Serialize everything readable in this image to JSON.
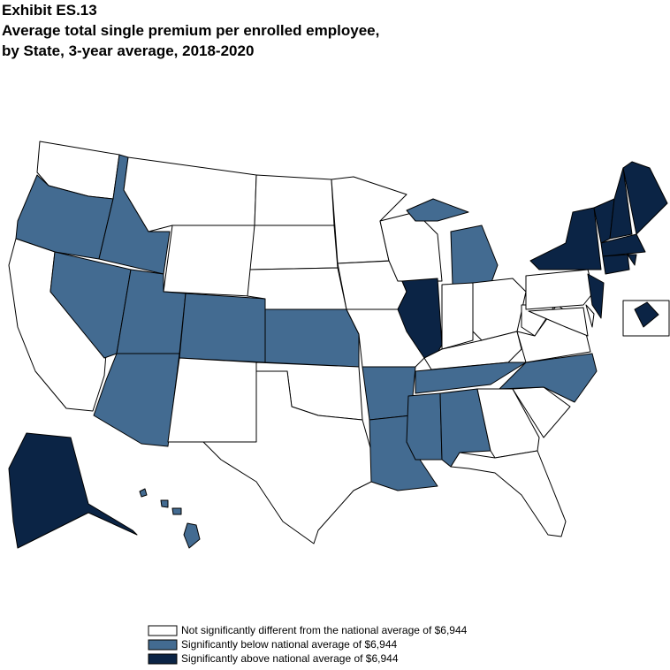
{
  "header": {
    "exhibit": "Exhibit ES.13",
    "title_line1": "Average total single premium per enrolled employee,",
    "title_line2": "by State, 3-year average, 2018-2020"
  },
  "legend": {
    "items": [
      {
        "label": "Not significantly different from the national average of  $6,944",
        "color": "#ffffff"
      },
      {
        "label": "Significantly below national average of  $6,944",
        "color": "#436b91"
      },
      {
        "label": "Significantly above national average of  $6,944",
        "color": "#0b2445"
      }
    ]
  }
}
